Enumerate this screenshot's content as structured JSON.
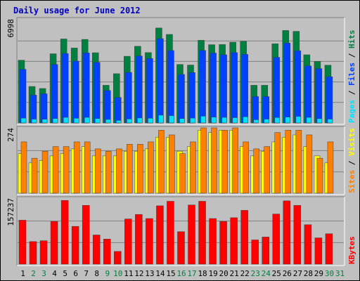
{
  "colors": {
    "background": "#C0C0C0",
    "hits": "#008040",
    "files": "#0040FF",
    "pages": "#00E0FF",
    "visits": "#FFFF00",
    "sites": "#FF8000",
    "kbytes": "#FF0000",
    "title": "#0000C0",
    "weekend_label": "#008040",
    "weekday_label": "#000000"
  },
  "chart_data": {
    "type": "bar",
    "title": "Daily usage for June 2012",
    "categories": [
      "1",
      "2",
      "3",
      "4",
      "5",
      "6",
      "7",
      "8",
      "9",
      "10",
      "11",
      "12",
      "13",
      "14",
      "15",
      "16",
      "17",
      "18",
      "19",
      "20",
      "21",
      "22",
      "23",
      "24",
      "25",
      "26",
      "27",
      "28",
      "29",
      "30",
      "31"
    ],
    "weekend_days": [
      "2",
      "3",
      "9",
      "10",
      "16",
      "17",
      "23",
      "24",
      "30",
      "31"
    ],
    "panels": [
      {
        "ymax_label": "6998",
        "ymax": 6998,
        "legend": [
          "Pages",
          "Files",
          "Hits"
        ],
        "series": [
          {
            "name": "Hits",
            "values": [
              4280,
              2490,
              2350,
              4720,
              5730,
              5110,
              5700,
              4790,
              2570,
              3360,
              4550,
              5230,
              4800,
              6480,
              6040,
              3990,
              3950,
              5640,
              5340,
              5350,
              5510,
              5570,
              2570,
              2570,
              5400,
              6310,
              6250,
              4650,
              4200,
              3940,
              0
            ]
          },
          {
            "name": "Files",
            "values": [
              3660,
              1900,
              1990,
              3990,
              4740,
              4220,
              4780,
              4130,
              2210,
              1740,
              3450,
              4570,
              4400,
              5750,
              4940,
              3310,
              3440,
              4950,
              4770,
              4650,
              4800,
              4680,
              1800,
              1800,
              4480,
              5450,
              4930,
              3890,
              3710,
              3150,
              0
            ]
          },
          {
            "name": "Pages",
            "values": [
              330,
              260,
              250,
              300,
              380,
              320,
              380,
              300,
              240,
              170,
              270,
              340,
              320,
              530,
              500,
              300,
              330,
              460,
              400,
              380,
              360,
              420,
              220,
              260,
              370,
              400,
              440,
              380,
              290,
              260,
              0
            ]
          }
        ]
      },
      {
        "ymax_label": "274",
        "ymax": 274,
        "legend": [
          "Sites",
          "Visits"
        ],
        "series": [
          {
            "name": "Visits",
            "values": [
              170,
              130,
              140,
              160,
              170,
              190,
              200,
              160,
              160,
              160,
              180,
              180,
              190,
              240,
              240,
              180,
              200,
              270,
              260,
              270,
              270,
              200,
              160,
              180,
              220,
              240,
              250,
              200,
              160,
              130,
              0
            ]
          },
          {
            "name": "Sites",
            "values": [
              220,
              150,
              180,
              200,
              200,
              220,
              220,
              190,
              180,
              190,
              210,
              210,
              220,
              270,
              250,
              170,
              220,
              280,
              280,
              270,
              280,
              220,
              190,
              200,
              260,
              270,
              270,
              250,
              150,
              220,
              0
            ]
          }
        ]
      },
      {
        "ymax_label": "157237",
        "ymax": 157237,
        "legend": [
          "KBytes"
        ],
        "series": [
          {
            "name": "KBytes",
            "values": [
              107000,
              55000,
              57000,
              104000,
              155000,
              92000,
              143000,
              71000,
              61000,
              31000,
              110000,
              121000,
              111000,
              142000,
              153000,
              79000,
              144000,
              153000,
              111000,
              104000,
              113000,
              131000,
              59000,
              66000,
              122000,
              154000,
              143000,
              96000,
              64000,
              74000,
              0
            ]
          }
        ]
      }
    ]
  }
}
